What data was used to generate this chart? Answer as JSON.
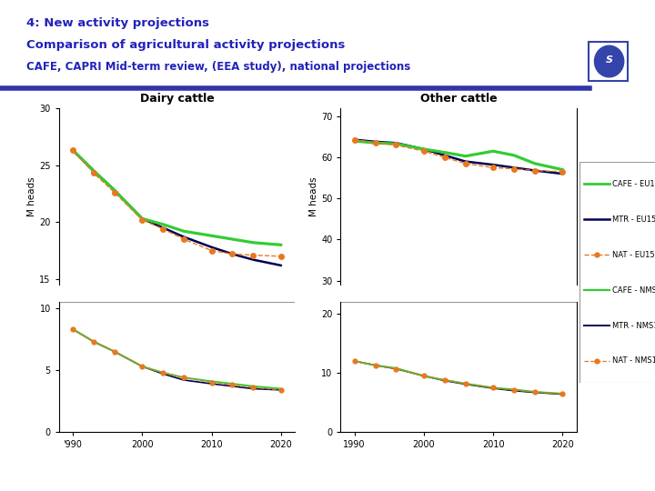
{
  "title_line1": "4: New activity projections",
  "title_line2": "Comparison of agricultural activity projections",
  "title_line3": "CAFE, CAPRI Mid-term review, (EEA study), national projections",
  "title_color": "#2222BB",
  "header_bar_color": "#3333AA",
  "background_color": "#FFFFFF",
  "dairy_title": "Dairy cattle",
  "other_title": "Other cattle",
  "ylabel": "M heads",
  "years": [
    1990,
    1993,
    1996,
    2000,
    2003,
    2006,
    2010,
    2013,
    2016,
    2020
  ],
  "dairy_cafe_eu15": [
    26.3,
    24.5,
    22.8,
    20.3,
    19.8,
    19.2,
    18.8,
    18.5,
    18.2,
    18.0
  ],
  "dairy_mtr_eu15": [
    26.3,
    24.5,
    22.8,
    20.3,
    19.5,
    18.7,
    17.8,
    17.2,
    16.7,
    16.2
  ],
  "dairy_nat_eu15": [
    26.3,
    24.3,
    22.6,
    20.2,
    19.4,
    18.5,
    17.5,
    17.2,
    17.1,
    17.0
  ],
  "dairy_cafe_nms10": [
    8.3,
    7.3,
    6.5,
    5.3,
    4.8,
    4.4,
    4.1,
    3.9,
    3.7,
    3.5
  ],
  "dairy_mtr_nms10": [
    8.3,
    7.3,
    6.5,
    5.3,
    4.7,
    4.2,
    3.9,
    3.7,
    3.5,
    3.4
  ],
  "dairy_nat_nms10": [
    8.3,
    7.3,
    6.5,
    5.3,
    4.8,
    4.4,
    4.0,
    3.8,
    3.6,
    3.4
  ],
  "other_cafe_eu15": [
    64.0,
    63.5,
    63.3,
    62.0,
    61.2,
    60.3,
    61.5,
    60.5,
    58.5,
    57.0
  ],
  "other_mtr_eu15": [
    64.3,
    63.8,
    63.5,
    62.0,
    60.5,
    59.0,
    58.2,
    57.5,
    56.8,
    56.0
  ],
  "other_nat_eu15": [
    64.3,
    63.5,
    63.0,
    61.5,
    60.0,
    58.5,
    57.5,
    57.2,
    56.8,
    56.5
  ],
  "other_cafe_nms10": [
    12.0,
    11.3,
    10.8,
    9.5,
    8.8,
    8.2,
    7.5,
    7.2,
    6.8,
    6.5
  ],
  "other_mtr_nms10": [
    12.0,
    11.3,
    10.7,
    9.5,
    8.7,
    8.1,
    7.4,
    7.0,
    6.7,
    6.4
  ],
  "other_nat_nms10": [
    12.0,
    11.3,
    10.7,
    9.5,
    8.8,
    8.2,
    7.5,
    7.1,
    6.8,
    6.5
  ],
  "color_cafe": "#33CC33",
  "color_mtr": "#000055",
  "color_nat": "#E87820",
  "dairy_ylim_upper": [
    14.5,
    30
  ],
  "dairy_ylim_lower": [
    0,
    10.5
  ],
  "dairy_yticks_upper": [
    15,
    20,
    25,
    30
  ],
  "dairy_yticks_lower": [
    0,
    5,
    10
  ],
  "other_ylim_upper": [
    29,
    72
  ],
  "other_ylim_lower": [
    0,
    22
  ],
  "other_yticks_upper": [
    30,
    40,
    50,
    60,
    70
  ],
  "other_yticks_lower": [
    0,
    10,
    20
  ],
  "xticks": [
    1990,
    2000,
    2010,
    2020
  ],
  "xlim": [
    1988,
    2022
  ]
}
